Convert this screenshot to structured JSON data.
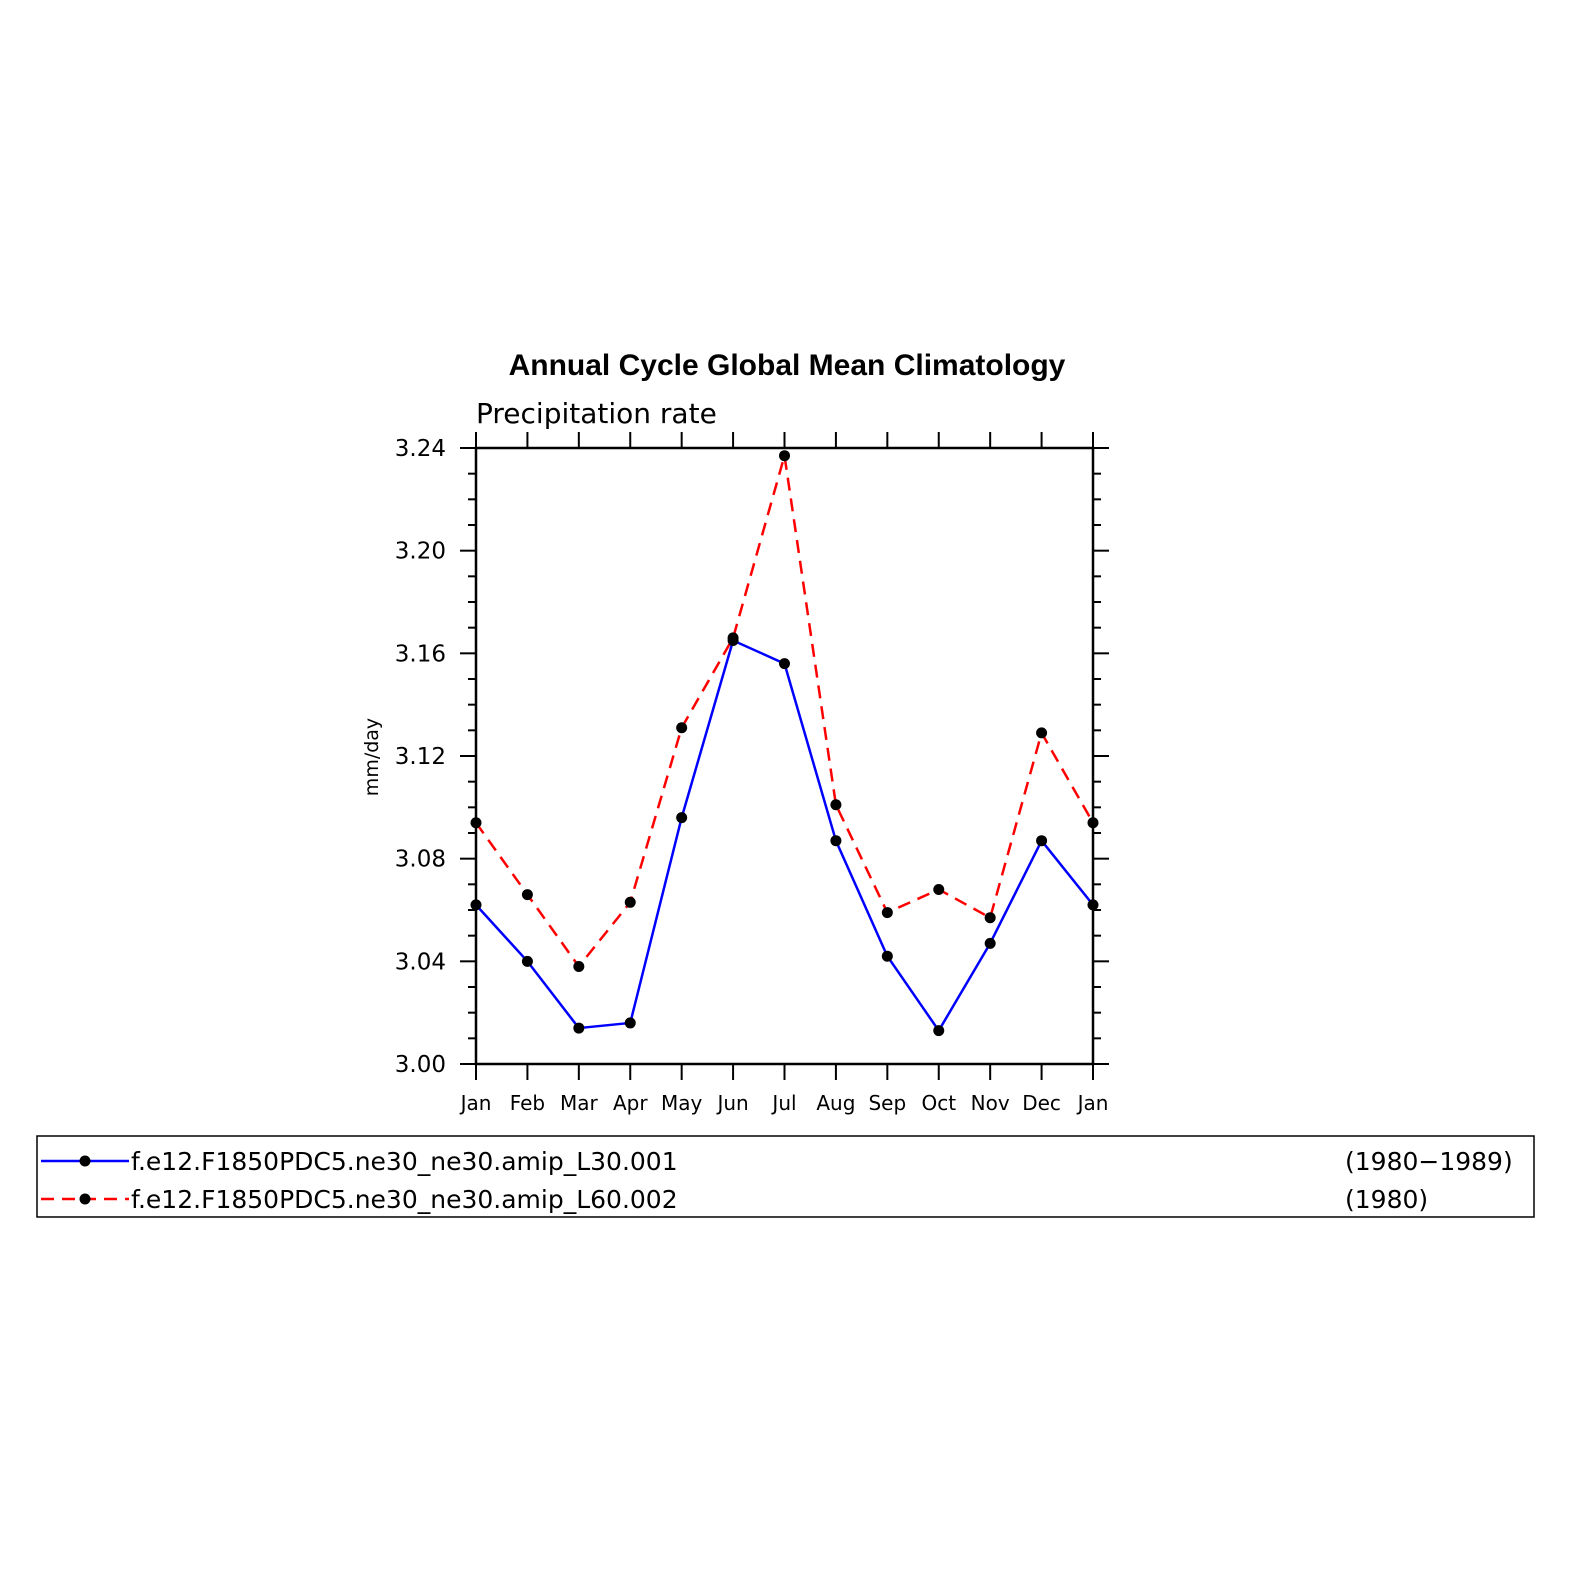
{
  "chart_data": {
    "type": "line",
    "title": "Annual Cycle Global Mean Climatology",
    "subtitle": "Precipitation rate",
    "ylabel": "mm/day",
    "xlabel": "",
    "categories": [
      "Jan",
      "Feb",
      "Mar",
      "Apr",
      "May",
      "Jun",
      "Jul",
      "Aug",
      "Sep",
      "Oct",
      "Nov",
      "Dec",
      "Jan"
    ],
    "ylim": [
      3.0,
      3.24
    ],
    "yticks": [
      "3.00",
      "3.04",
      "3.08",
      "3.12",
      "3.16",
      "3.20",
      "3.24"
    ],
    "series": [
      {
        "name": "f.e12.F1850PDC5.ne30_ne30.amip_L30.001",
        "period": "(1980−1989)",
        "color": "#0000ff",
        "style": "solid",
        "values": [
          3.062,
          3.04,
          3.014,
          3.016,
          3.096,
          3.165,
          3.156,
          3.087,
          3.042,
          3.013,
          3.047,
          3.087,
          3.062
        ]
      },
      {
        "name": "f.e12.F1850PDC5.ne30_ne30.amip_L60.002",
        "period": "(1980)",
        "color": "#ff0000",
        "style": "dashed",
        "values": [
          3.094,
          3.066,
          3.038,
          3.063,
          3.131,
          3.166,
          3.237,
          3.101,
          3.059,
          3.068,
          3.057,
          3.129,
          3.094
        ]
      }
    ],
    "marker_color": "#000000",
    "grid": false,
    "legend_position": "bottom"
  }
}
